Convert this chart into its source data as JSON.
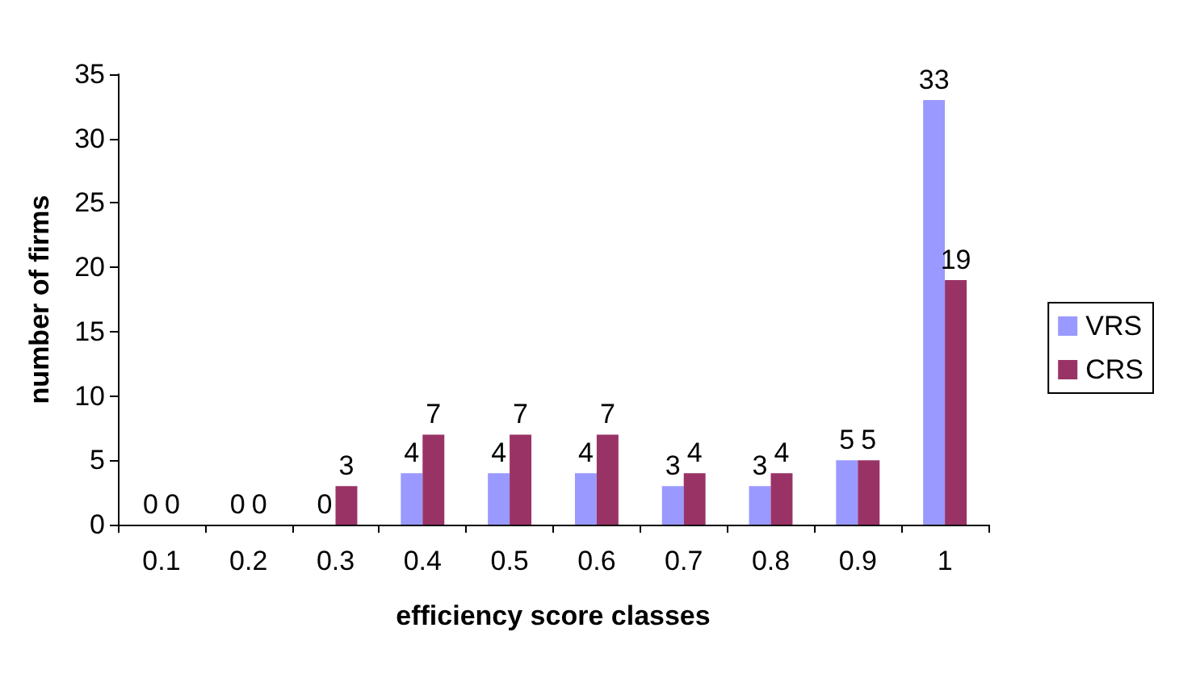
{
  "chart_data": {
    "type": "bar",
    "xlabel": "efficiency score classes",
    "ylabel": "number of firms",
    "categories": [
      "0.1",
      "0.2",
      "0.3",
      "0.4",
      "0.5",
      "0.6",
      "0.7",
      "0.8",
      "0.9",
      "1"
    ],
    "series": [
      {
        "name": "VRS",
        "color": "#9999ff",
        "values": [
          0,
          0,
          0,
          4,
          4,
          4,
          3,
          3,
          5,
          33
        ]
      },
      {
        "name": "CRS",
        "color": "#993366",
        "values": [
          0,
          0,
          3,
          7,
          7,
          7,
          4,
          4,
          5,
          19
        ]
      }
    ],
    "ylim": [
      0,
      35
    ],
    "yticks": [
      0,
      5,
      10,
      15,
      20,
      25,
      30,
      35
    ],
    "grid": false,
    "legend": "right",
    "data_labels": true
  }
}
